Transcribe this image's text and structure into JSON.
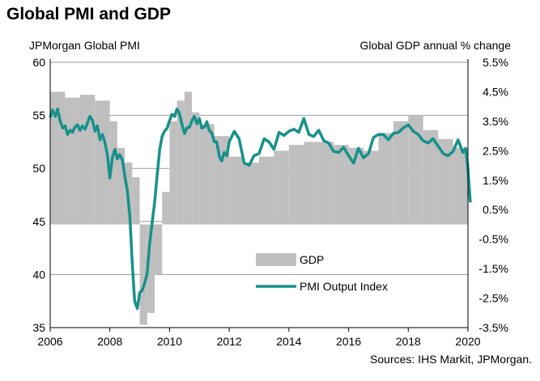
{
  "title": "Global PMI and GDP",
  "source": "Sources: IHS Markit, JPMorgan.",
  "chart_data": {
    "type": "bar+line",
    "title": "Global PMI and GDP",
    "left_axis_label": "JPMorgan Global PMI",
    "right_axis_label": "Global GDP annual % change",
    "left_ylim": [
      35,
      60
    ],
    "right_ylim": [
      -3.5,
      5.5
    ],
    "left_ticks": [
      "35",
      "40",
      "45",
      "50",
      "55",
      "60"
    ],
    "right_ticks": [
      "-3.5%",
      "-2.5%",
      "-1.5%",
      "-0.5%",
      "0.5%",
      "1.5%",
      "2.5%",
      "3.5%",
      "4.5%",
      "5.5%"
    ],
    "x_ticks": [
      "2006",
      "2008",
      "2010",
      "2012",
      "2014",
      "2016",
      "2018",
      "2020"
    ],
    "xlim": [
      2006,
      2020
    ],
    "grid": true,
    "legend_position": "lower-center",
    "colors": {
      "gdp": "#bfbfbf",
      "pmi": "#17918a"
    },
    "series": [
      {
        "name": "GDP",
        "kind": "bar",
        "axis": "right",
        "x": [
          2006.0,
          2006.5,
          2007.0,
          2007.5,
          2008.0,
          2008.25,
          2008.5,
          2008.75,
          2009.0,
          2009.25,
          2009.5,
          2009.75,
          2010.0,
          2010.25,
          2010.5,
          2010.75,
          2011.0,
          2011.5,
          2012.0,
          2012.5,
          2013.0,
          2013.5,
          2014.0,
          2014.5,
          2015.0,
          2015.5,
          2016.0,
          2016.5,
          2017.0,
          2017.5,
          2018.0,
          2018.5,
          2019.0,
          2019.5
        ],
        "values": [
          4.5,
          4.3,
          4.4,
          4.2,
          3.5,
          2.6,
          2.1,
          1.6,
          -3.4,
          -3.0,
          -1.7,
          1.1,
          3.5,
          4.2,
          4.5,
          3.8,
          3.4,
          3.0,
          2.3,
          2.1,
          2.3,
          2.5,
          2.7,
          2.8,
          2.8,
          2.7,
          2.6,
          2.5,
          3.1,
          3.5,
          3.7,
          3.2,
          2.9,
          2.6
        ]
      },
      {
        "name": "PMI Output Index",
        "kind": "line",
        "axis": "left",
        "x": [
          2006.0,
          2006.08,
          2006.17,
          2006.25,
          2006.33,
          2006.42,
          2006.5,
          2006.58,
          2006.67,
          2006.75,
          2006.83,
          2006.92,
          2007.0,
          2007.08,
          2007.17,
          2007.25,
          2007.33,
          2007.42,
          2007.5,
          2007.58,
          2007.67,
          2007.75,
          2007.83,
          2007.92,
          2008.0,
          2008.08,
          2008.17,
          2008.25,
          2008.33,
          2008.42,
          2008.5,
          2008.58,
          2008.67,
          2008.75,
          2008.83,
          2008.92,
          2009.0,
          2009.08,
          2009.17,
          2009.25,
          2009.33,
          2009.42,
          2009.5,
          2009.58,
          2009.67,
          2009.75,
          2009.83,
          2009.92,
          2010.0,
          2010.08,
          2010.17,
          2010.25,
          2010.33,
          2010.42,
          2010.5,
          2010.58,
          2010.67,
          2010.75,
          2010.83,
          2010.92,
          2011.0,
          2011.08,
          2011.17,
          2011.25,
          2011.33,
          2011.42,
          2011.5,
          2011.58,
          2011.67,
          2011.75,
          2011.83,
          2011.92,
          2012.0,
          2012.17,
          2012.33,
          2012.5,
          2012.67,
          2012.83,
          2013.0,
          2013.17,
          2013.33,
          2013.5,
          2013.67,
          2013.83,
          2014.0,
          2014.17,
          2014.33,
          2014.5,
          2014.67,
          2014.83,
          2015.0,
          2015.17,
          2015.33,
          2015.5,
          2015.67,
          2015.83,
          2016.0,
          2016.17,
          2016.33,
          2016.5,
          2016.67,
          2016.83,
          2017.0,
          2017.17,
          2017.33,
          2017.5,
          2017.67,
          2017.83,
          2018.0,
          2018.17,
          2018.33,
          2018.5,
          2018.67,
          2018.83,
          2019.0,
          2019.17,
          2019.33,
          2019.5,
          2019.67,
          2019.83,
          2019.92,
          2020.0,
          2020.08
        ],
        "values": [
          54.8,
          55.5,
          54.9,
          55.6,
          54.5,
          53.8,
          54.0,
          53.2,
          53.6,
          53.4,
          53.9,
          54.1,
          53.6,
          54.0,
          53.7,
          54.3,
          54.9,
          54.5,
          53.5,
          54.0,
          52.7,
          53.2,
          52.5,
          51.2,
          49.1,
          51.0,
          51.8,
          50.9,
          51.3,
          50.8,
          49.3,
          48.0,
          45.5,
          41.0,
          37.5,
          36.8,
          38.3,
          38.5,
          39.2,
          40.1,
          42.8,
          45.0,
          46.8,
          49.2,
          51.8,
          53.0,
          53.5,
          53.8,
          54.5,
          55.1,
          54.9,
          55.6,
          55.2,
          54.1,
          53.3,
          53.8,
          53.9,
          54.5,
          54.9,
          54.2,
          54.7,
          53.8,
          53.9,
          54.4,
          53.6,
          53.3,
          52.5,
          52.5,
          51.1,
          50.7,
          51.5,
          51.2,
          52.5,
          53.5,
          52.8,
          50.5,
          50.3,
          51.2,
          51.4,
          52.8,
          52.5,
          51.8,
          53.4,
          53.1,
          53.5,
          53.7,
          53.4,
          54.7,
          53.2,
          53.0,
          53.6,
          52.6,
          52.4,
          51.6,
          51.5,
          52.0,
          51.2,
          50.5,
          51.9,
          51.0,
          51.4,
          52.9,
          53.2,
          53.2,
          52.7,
          53.3,
          53.4,
          53.8,
          54.1,
          53.5,
          53.2,
          52.6,
          52.4,
          52.8,
          52.1,
          51.4,
          51.2,
          51.6,
          52.7,
          51.5,
          51.9,
          50.0,
          46.8
        ]
      }
    ]
  }
}
